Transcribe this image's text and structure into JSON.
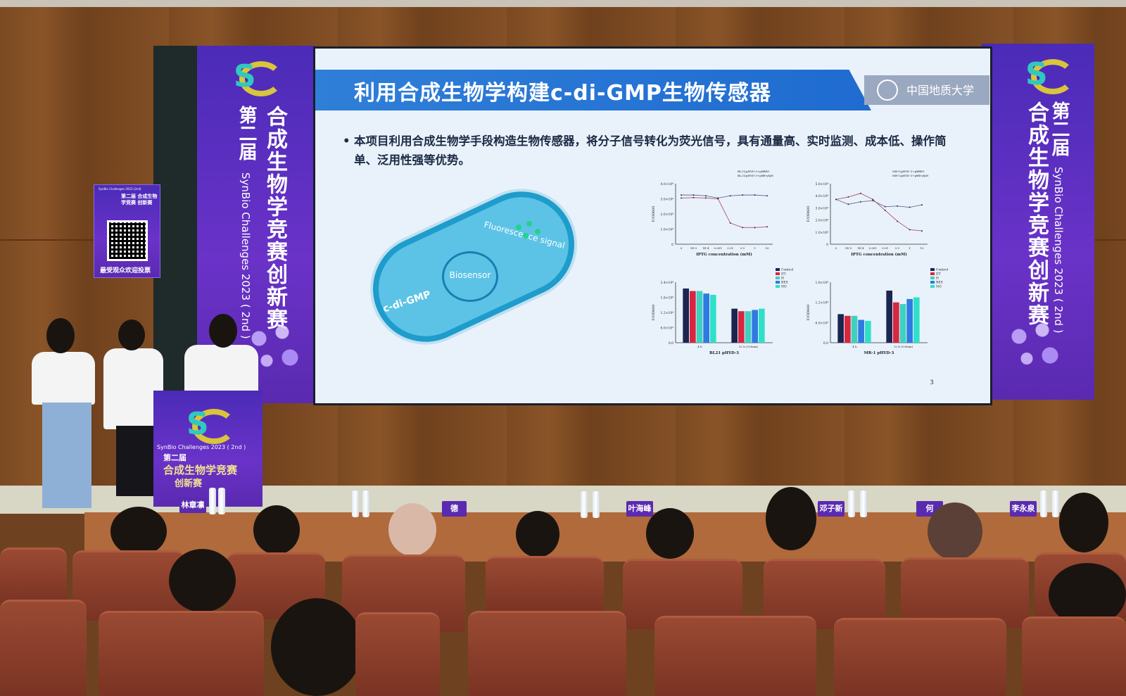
{
  "slide": {
    "title": "利用合成生物学构建c-di-GMP生物传感器",
    "university_logo_text": "中国地质大学",
    "bullet": "本项目利用合成生物学手段构造生物传感器，将分子信号转化为荧光信号，具有通量高、实时监测、成本低、操作简单、泛用性强等优势。",
    "diagram": {
      "cell_label": "c-di-GMP",
      "inner_label": "Biosensor",
      "signal_label": "Fluorescence signal"
    },
    "page_number": "3"
  },
  "chart_data": [
    {
      "type": "line",
      "xlabel": "IPTG concentration (mM)",
      "ylabel": "F/OD600",
      "categories": [
        "0",
        "1E-5",
        "1E-4",
        "0.001",
        "0.01",
        "0.1",
        "1",
        "10"
      ],
      "yticks": [
        "0",
        "1.0×10⁴",
        "2.0×10⁴",
        "3.0×10⁴",
        "4.0×10⁴"
      ],
      "ylim": [
        0,
        40000
      ],
      "series": [
        {
          "name": "BL21/pHYD-3+pBBR1",
          "values": [
            32500,
            32500,
            32000,
            30500,
            32000,
            32500,
            32500,
            32000
          ]
        },
        {
          "name": "BL21/pHYD-3+pBB-yhjH",
          "values": [
            30500,
            30800,
            30500,
            30000,
            14000,
            11000,
            11000,
            11500
          ]
        }
      ],
      "legend": "top-right"
    },
    {
      "type": "line",
      "xlabel": "IPTG concentration (mM)",
      "ylabel": "F/OD600",
      "categories": [
        "0",
        "1E-5",
        "1E-4",
        "0.001",
        "0.01",
        "0.1",
        "1",
        "10"
      ],
      "yticks": [
        "0",
        "1.0×10⁴",
        "2.0×10⁴",
        "3.0×10⁴",
        "4.0×10⁴",
        "5.0×10⁴"
      ],
      "ylim": [
        0,
        50000
      ],
      "series": [
        {
          "name": "MR-1/pHYD-3+pBBR1",
          "values": [
            37000,
            33000,
            35000,
            36000,
            31000,
            31500,
            30500,
            32500
          ]
        },
        {
          "name": "MR-1/pHYD-3+pBB-yhjH",
          "values": [
            37000,
            39000,
            42000,
            37000,
            28000,
            19000,
            12000,
            11000
          ]
        }
      ],
      "legend": "top-right"
    },
    {
      "type": "bar",
      "xlabel": "BL21 pHYD-3",
      "ylabel": "F/OD600",
      "categories": [
        "4 h",
        "12 h (100nm)"
      ],
      "yticks": [
        "0.0",
        "6.0×10³",
        "1.2×10⁴",
        "1.8×10⁴",
        "2.4×10⁴"
      ],
      "ylim": [
        0,
        24000
      ],
      "series": [
        {
          "name": "Control",
          "values": [
            21500,
            13500
          ]
        },
        {
          "name": "DT",
          "values": [
            20500,
            12500
          ]
        },
        {
          "name": "H",
          "values": [
            20500,
            12500
          ]
        },
        {
          "name": "RES",
          "values": [
            19500,
            13000
          ]
        },
        {
          "name": "NO",
          "values": [
            19000,
            13500
          ]
        }
      ],
      "legend": "top-right"
    },
    {
      "type": "bar",
      "xlabel": "MR-1 pHYD-3",
      "ylabel": "F/OD600",
      "categories": [
        "4 h",
        "12 h (100nm)"
      ],
      "yticks": [
        "0.0",
        "6.0×10³",
        "1.2×10⁴",
        "1.8×10⁴"
      ],
      "ylim": [
        0,
        18000
      ],
      "series": [
        {
          "name": "Control",
          "values": [
            8500,
            15500
          ]
        },
        {
          "name": "DT",
          "values": [
            8000,
            12000
          ]
        },
        {
          "name": "H",
          "values": [
            8000,
            11500
          ]
        },
        {
          "name": "RES",
          "values": [
            6800,
            13000
          ]
        },
        {
          "name": "NO",
          "values": [
            6500,
            13500
          ]
        }
      ],
      "legend": "top-right"
    }
  ],
  "series_colors": [
    "#1b2550",
    "#d8263e",
    "#3fd0c0",
    "#2e7ae0",
    "#2fe0c8"
  ],
  "banners": {
    "edition": "第二届",
    "name": "合成生物学竞赛创新赛",
    "english": "SynBio Challenges 2023 ( 2nd )"
  },
  "qr_poster": {
    "small_title": "SynBio Challenges 2023 (2nd)",
    "title": "第二届 合成生物学竞赛 创新赛",
    "caption": "最受观众欢迎投票"
  },
  "podium": {
    "english": "SynBio Challenges 2023 ( 2nd )",
    "edition": "第二届",
    "name": "合成生物学竞赛",
    "sub": "创新赛"
  },
  "nameplates": [
    "林章凛",
    "德",
    "叶海峰",
    "邓子新",
    "何",
    "李永泉"
  ],
  "colors": {
    "banner_purple": "#5a2fc0",
    "title_blue": "#2a78d6",
    "wood": "#7b4a22",
    "seat": "#8a3d2a"
  }
}
